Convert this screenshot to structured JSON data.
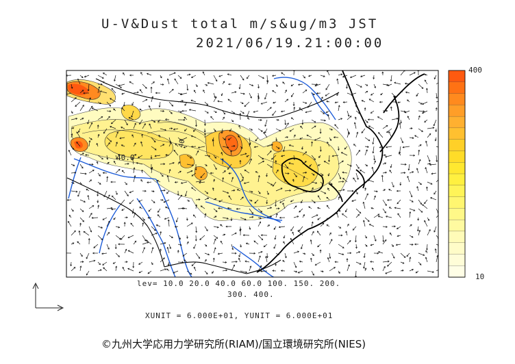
{
  "title": {
    "line1": "U-V&Dust total m/s&ug/m3 JST",
    "line2": "2021/06/19.21:00:00"
  },
  "map": {
    "contour_label": "40.0",
    "contour_label2": "40"
  },
  "colorbar": {
    "max_label": "400",
    "min_label": "10",
    "colors": [
      "#ff5a10",
      "#ff7214",
      "#ff8a1e",
      "#ff9e28",
      "#ffb030",
      "#ffc030",
      "#ffd028",
      "#ffdc28",
      "#ffe830",
      "#fff040",
      "#fff458",
      "#fff670",
      "#fff888",
      "#fffaa0",
      "#fffbb8",
      "#fffcc8",
      "#fffdd8",
      "#fffee6"
    ]
  },
  "levels": {
    "line1": "lev= 10.0 20.0 40.0 60.0 100. 150. 200.",
    "line2": "300. 400."
  },
  "units": "XUNIT = 6.000E+01, YUNIT = 6.000E+01",
  "copyright": "©九州大学応用力学研究所(RIAM)/国立環境研究所(NIES)"
}
